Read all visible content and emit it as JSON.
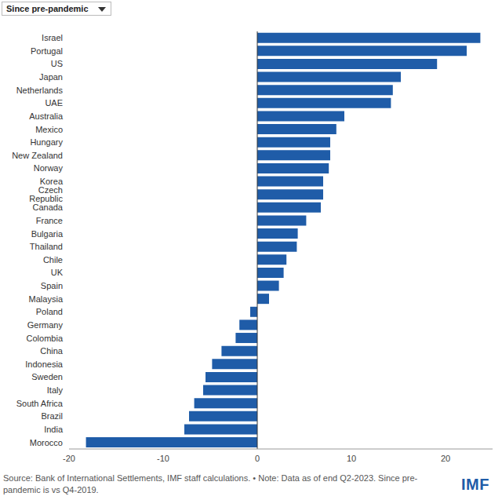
{
  "chart_data": {
    "type": "bar",
    "orientation": "horizontal",
    "title": "Since pre-pandemic",
    "categories": [
      "Israel",
      "Portugal",
      "US",
      "Japan",
      "Netherlands",
      "UAE",
      "Australia",
      "Mexico",
      "Hungary",
      "New Zealand",
      "Norway",
      "Korea",
      "Czech Republic",
      "Canada",
      "France",
      "Bulgaria",
      "Thailand",
      "Chile",
      "UK",
      "Spain",
      "Malaysia",
      "Poland",
      "Germany",
      "Colombia",
      "China",
      "Indonesia",
      "Sweden",
      "Italy",
      "South Africa",
      "Brazil",
      "India",
      "Morocco"
    ],
    "values": [
      23.7,
      22.25,
      19.1,
      15.25,
      14.4,
      14.2,
      9.25,
      8.4,
      7.75,
      7.75,
      7.6,
      7.0,
      7.0,
      6.75,
      5.2,
      4.3,
      4.2,
      3.1,
      2.8,
      2.3,
      1.25,
      -0.75,
      -1.9,
      -2.3,
      -3.8,
      -4.8,
      -5.5,
      -5.75,
      -6.7,
      -7.25,
      -7.75,
      -18.2
    ],
    "color": "#1f5ca8",
    "xlim": [
      -20,
      25
    ],
    "xticks": [
      -20,
      -10,
      0,
      10,
      20
    ],
    "grid": false,
    "annotations": [
      "Source: Bank of International Settlements, IMF staff calculations. • Note: Data as of end Q2-2023. Since pre-pandemic is vs Q4-2019.",
      "IMF"
    ]
  }
}
